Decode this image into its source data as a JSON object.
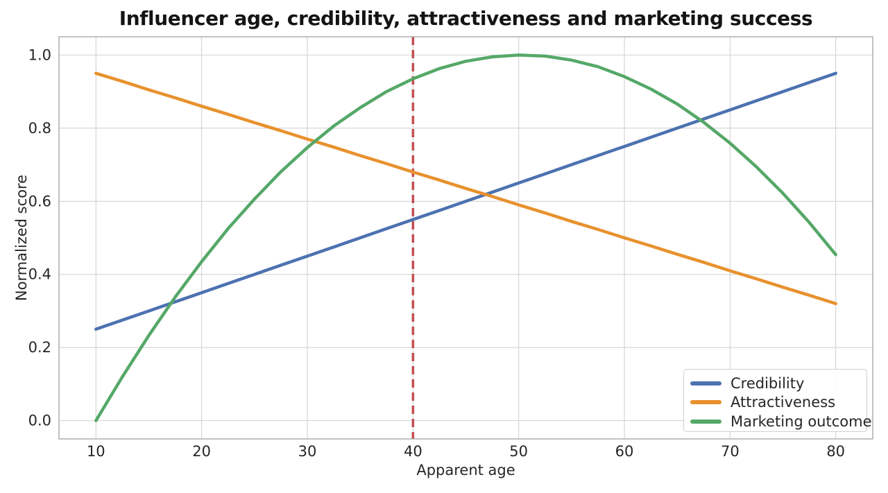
{
  "chart_data": {
    "type": "line",
    "title": "Influencer age, credibility, attractiveness and marketing success",
    "xlabel": "Apparent age",
    "ylabel": "Normalized score",
    "x_ticks": [
      10,
      20,
      30,
      40,
      50,
      60,
      70,
      80
    ],
    "y_ticks": [
      0.0,
      0.2,
      0.4,
      0.6,
      0.8,
      1.0
    ],
    "xlim": [
      6.5,
      83.5
    ],
    "ylim": [
      -0.05,
      1.05
    ],
    "grid": true,
    "grid_color": "#d2d2d2",
    "spine_color": "#a8a8a8",
    "tick_label_color": "#262626",
    "x": [
      10,
      12.5,
      15,
      17.5,
      20,
      22.5,
      25,
      27.5,
      30,
      32.5,
      35,
      37.5,
      40,
      42.5,
      45,
      47.5,
      50,
      52.5,
      55,
      57.5,
      60,
      62.5,
      65,
      67.5,
      70,
      72.5,
      75,
      77.5,
      80
    ],
    "series": [
      {
        "name": "Credibility",
        "color": "#4C72B0",
        "values": [
          0.25,
          0.275,
          0.3,
          0.325,
          0.35,
          0.375,
          0.4,
          0.425,
          0.45,
          0.475,
          0.5,
          0.525,
          0.55,
          0.575,
          0.6,
          0.625,
          0.65,
          0.675,
          0.7,
          0.725,
          0.75,
          0.775,
          0.8,
          0.825,
          0.85,
          0.875,
          0.9,
          0.925,
          0.95
        ]
      },
      {
        "name": "Attractiveness",
        "color": "#E8912D",
        "values": [
          0.95,
          0.928,
          0.905,
          0.883,
          0.86,
          0.838,
          0.815,
          0.793,
          0.77,
          0.748,
          0.725,
          0.703,
          0.68,
          0.658,
          0.635,
          0.613,
          0.59,
          0.568,
          0.545,
          0.523,
          0.5,
          0.478,
          0.455,
          0.433,
          0.41,
          0.388,
          0.365,
          0.343,
          0.32
        ]
      },
      {
        "name": "Marketing outcome",
        "color": "#55A868",
        "values": [
          0.0,
          0.12,
          0.233,
          0.338,
          0.435,
          0.525,
          0.606,
          0.681,
          0.747,
          0.806,
          0.856,
          0.9,
          0.935,
          0.963,
          0.983,
          0.995,
          1.0,
          0.997,
          0.986,
          0.968,
          0.941,
          0.907,
          0.866,
          0.816,
          0.759,
          0.694,
          0.622,
          0.542,
          0.454
        ]
      }
    ],
    "reference_line": {
      "x": 40,
      "color": "#C44E52",
      "style": "dashed"
    },
    "legend": {
      "position": "lower right"
    }
  }
}
